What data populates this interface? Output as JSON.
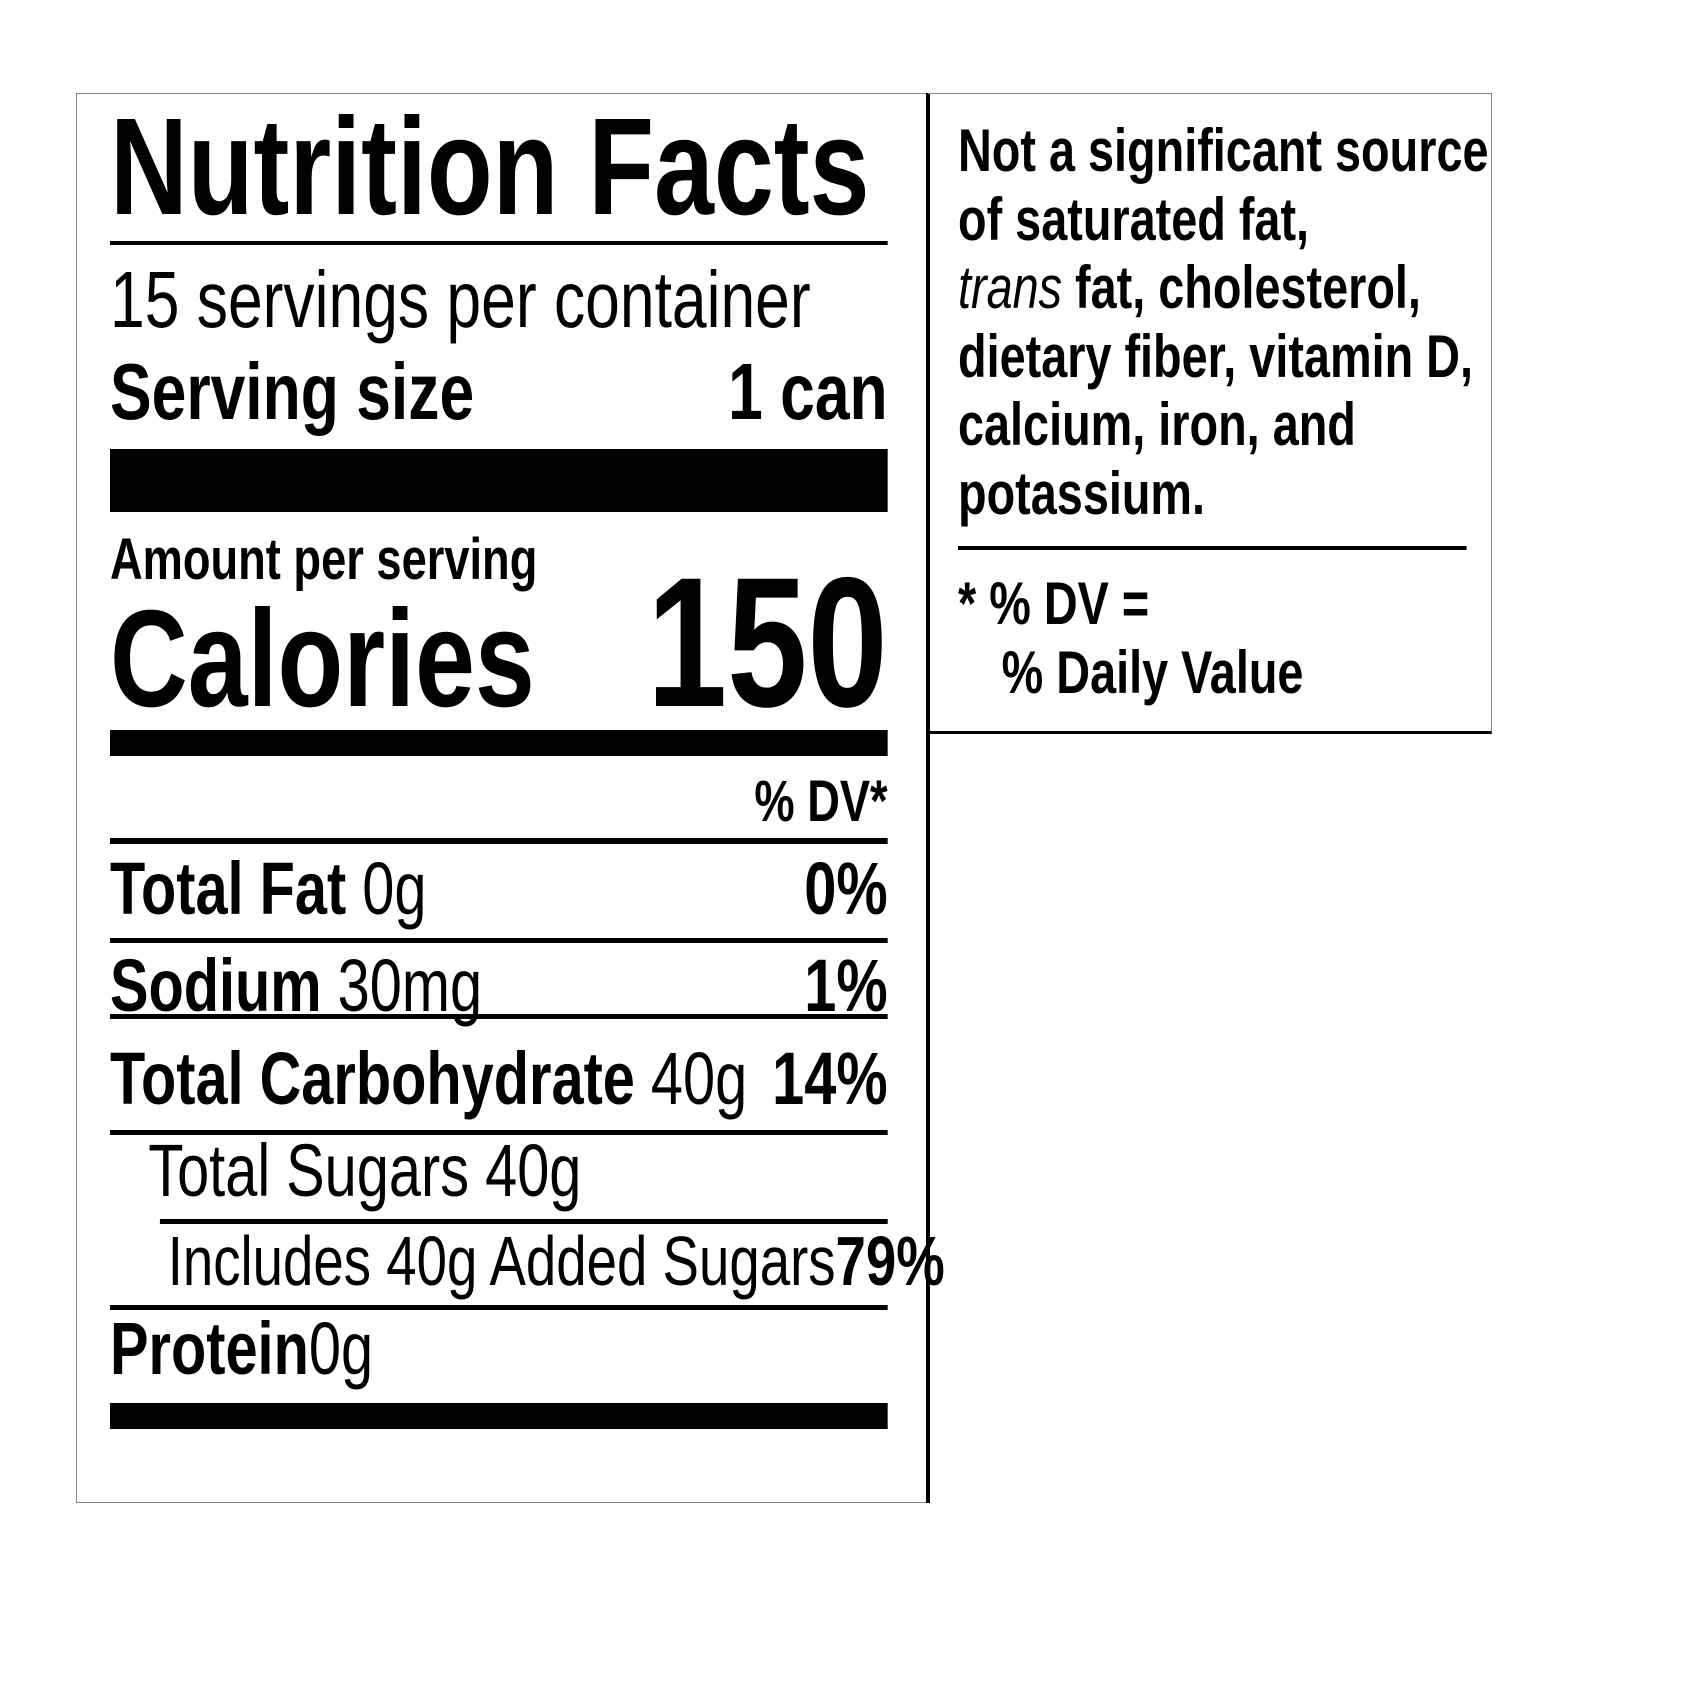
{
  "label": {
    "title": "Nutrition Facts",
    "servings": "15 servings per container",
    "serving_size": {
      "label": "Serving size",
      "value": "1 can"
    },
    "amount_per_serving": "Amount per serving",
    "calories": {
      "label": "Calories",
      "value": "150"
    },
    "dv_header": "% DV*",
    "rows": [
      {
        "name": "Total Fat",
        "amount": "0g",
        "dv": "0%"
      },
      {
        "name": "Sodium",
        "amount": "30mg",
        "dv": "1%"
      },
      {
        "name": "Total Carbohydrate",
        "amount": "40g",
        "dv": "14%"
      },
      {
        "text": "Total Sugars 40g"
      },
      {
        "text": "Includes 40g Added Sugars",
        "dv": "79%"
      },
      {
        "name": "Protein",
        "amount": "0g"
      }
    ]
  },
  "note": {
    "lines": [
      "Not a significant source",
      "of saturated fat,",
      [
        "trans",
        " fat, cholesterol,"
      ],
      "dietary fiber, vitamin D,",
      "calcium, iron, and",
      "potassium."
    ],
    "dv_lines": [
      "* % DV =",
      "% Daily Value"
    ]
  }
}
